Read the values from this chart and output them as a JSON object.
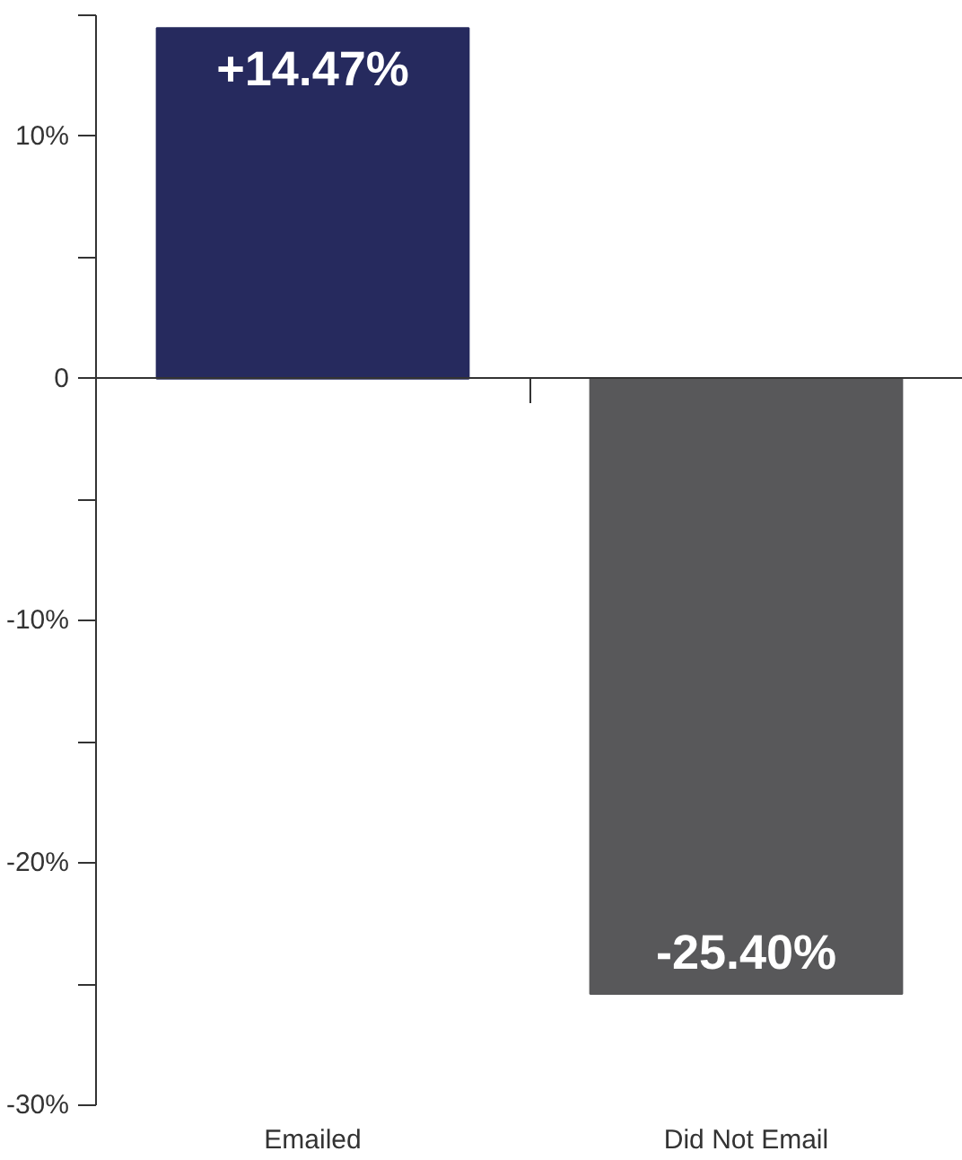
{
  "chart_data": {
    "type": "bar",
    "categories": [
      "Emailed",
      "Did Not Email"
    ],
    "values": [
      14.47,
      -25.4
    ],
    "colors": [
      "#262a5e",
      "#58585a"
    ],
    "value_labels": [
      "+14.47%",
      "-25.40%"
    ],
    "ylim": [
      -30,
      15
    ],
    "yticks": [
      {
        "value": 15,
        "label": null
      },
      {
        "value": 10,
        "label": "10%"
      },
      {
        "value": 5,
        "label": null
      },
      0,
      {
        "value": -5,
        "label": null
      },
      {
        "value": -10,
        "label": "-10%"
      },
      {
        "value": -15,
        "label": null
      },
      {
        "value": -20,
        "label": "-20%"
      },
      {
        "value": -25,
        "label": null
      },
      {
        "value": -30,
        "label": "-30%"
      }
    ]
  }
}
